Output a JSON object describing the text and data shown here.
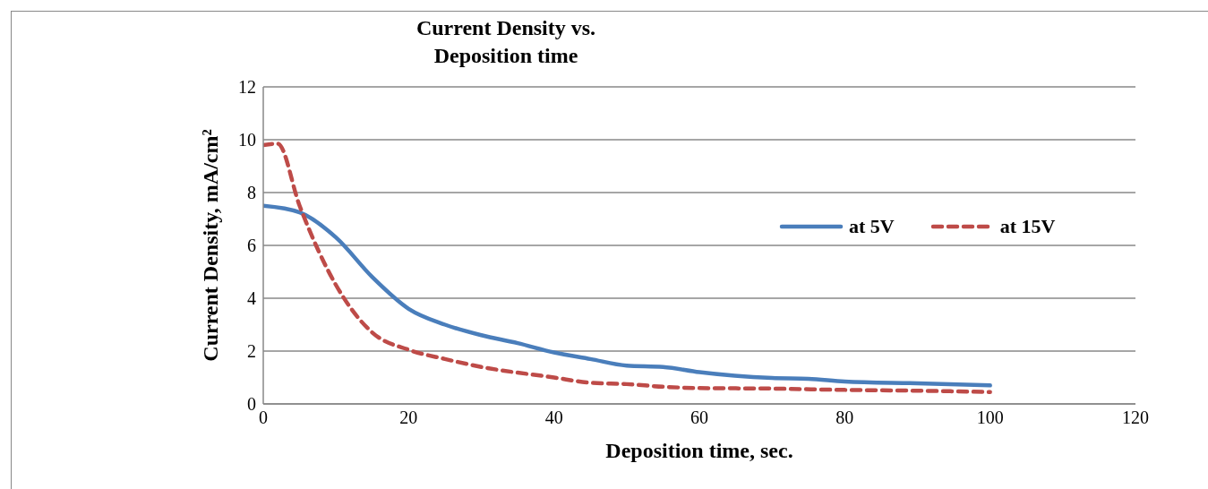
{
  "chart_data": {
    "type": "line",
    "title": "Current Density vs. Deposition time",
    "xlabel": "Deposition time, sec.",
    "ylabel": "Current Density, mA/cm²",
    "xlim": [
      0,
      120
    ],
    "xticks": [
      0,
      20,
      40,
      60,
      80,
      100,
      120
    ],
    "ylim": [
      0,
      12
    ],
    "yticks": [
      0,
      2,
      4,
      6,
      8,
      10,
      12
    ],
    "grid": "y",
    "legend": "right",
    "marker": "none",
    "series": [
      {
        "name": "at 5V",
        "color": "#4a7ebb",
        "line_style": "solid",
        "x": [
          0,
          5,
          10,
          15,
          20,
          25,
          30,
          35,
          40,
          45,
          50,
          55,
          60,
          70,
          75,
          80,
          90,
          100
        ],
        "values": [
          7.5,
          7.25,
          6.3,
          4.8,
          3.6,
          3.0,
          2.6,
          2.3,
          1.95,
          1.7,
          1.45,
          1.4,
          1.2,
          0.98,
          0.95,
          0.85,
          0.78,
          0.7
        ]
      },
      {
        "name": "at 15V",
        "color": "#be4b48",
        "line_style": "dashed",
        "x": [
          0,
          2,
          5,
          10,
          15,
          20,
          25,
          30,
          40,
          45,
          50,
          55,
          60,
          70,
          80,
          90,
          100
        ],
        "values": [
          9.8,
          9.85,
          7.5,
          4.5,
          2.7,
          2.05,
          1.7,
          1.4,
          1.0,
          0.8,
          0.75,
          0.65,
          0.6,
          0.58,
          0.53,
          0.5,
          0.45
        ]
      }
    ]
  }
}
